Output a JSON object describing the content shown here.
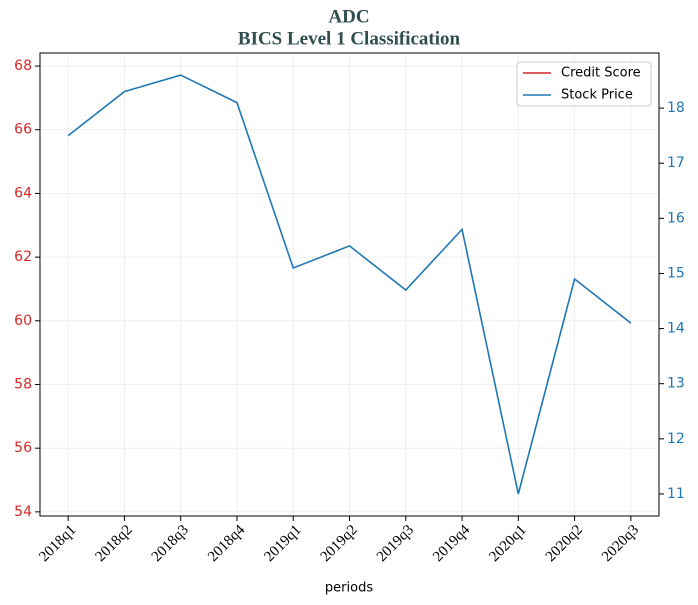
{
  "chart_data": {
    "type": "line",
    "title": "ADC",
    "subtitle": "BICS Level 1 Classification",
    "xlabel": "periods",
    "categories": [
      "2018q1",
      "2018q2",
      "2018q3",
      "2018q4",
      "2019q1",
      "2019q2",
      "2019q3",
      "2019q4",
      "2020q1",
      "2020q2",
      "2020q3"
    ],
    "series": [
      {
        "name": "Credit Score",
        "color": "#d62728",
        "values": [
          null,
          null,
          null,
          null,
          null,
          null,
          null,
          null,
          null,
          null,
          null
        ]
      },
      {
        "name": "Stock Price",
        "color": "#1f77b4",
        "axis": "y2",
        "values": [
          17.5,
          18.3,
          18.6,
          18.1,
          15.1,
          15.5,
          14.7,
          15.8,
          11.0,
          14.9,
          14.1
        ]
      }
    ],
    "ylim": [
      53.87,
      68.41
    ],
    "yticks": [
      54,
      56,
      58,
      60,
      62,
      64,
      66,
      68
    ],
    "ycolor": "#d62728",
    "y2lim": [
      10.6,
      19.0
    ],
    "y2ticks": [
      11,
      12,
      13,
      14,
      15,
      16,
      17,
      18
    ],
    "y2color": "#1f77b4",
    "grid": true,
    "legend": "upper right"
  }
}
